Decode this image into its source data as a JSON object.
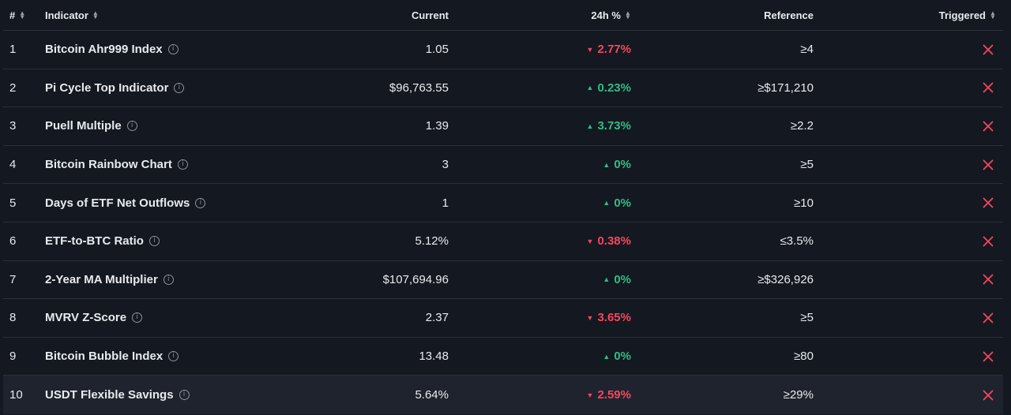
{
  "header": {
    "num": "#",
    "indicator": "Indicator",
    "current": "Current",
    "change": "24h %",
    "reference": "Reference",
    "triggered": "Triggered"
  },
  "colors": {
    "up": "#2ebd85",
    "down": "#f6465d",
    "background": "#141821"
  },
  "rows": [
    {
      "num": "1",
      "name": "Bitcoin Ahr999 Index",
      "current": "1.05",
      "direction": "down",
      "change": "2.77%",
      "reference": "≥4",
      "triggered_icon": "x-icon"
    },
    {
      "num": "2",
      "name": "Pi Cycle Top Indicator",
      "current": "$96,763.55",
      "direction": "up",
      "change": "0.23%",
      "reference": "≥$171,210",
      "triggered_icon": "x-icon"
    },
    {
      "num": "3",
      "name": "Puell Multiple",
      "current": "1.39",
      "direction": "up",
      "change": "3.73%",
      "reference": "≥2.2",
      "triggered_icon": "x-icon"
    },
    {
      "num": "4",
      "name": "Bitcoin Rainbow Chart",
      "current": "3",
      "direction": "up",
      "change": "0%",
      "reference": "≥5",
      "triggered_icon": "x-icon"
    },
    {
      "num": "5",
      "name": "Days of ETF Net Outflows",
      "current": "1",
      "direction": "up",
      "change": "0%",
      "reference": "≥10",
      "triggered_icon": "x-icon"
    },
    {
      "num": "6",
      "name": "ETF-to-BTC Ratio",
      "current": "5.12%",
      "direction": "down",
      "change": "0.38%",
      "reference": "≤3.5%",
      "triggered_icon": "x-icon"
    },
    {
      "num": "7",
      "name": "2-Year MA Multiplier",
      "current": "$107,694.96",
      "direction": "up",
      "change": "0%",
      "reference": "≥$326,926",
      "triggered_icon": "x-icon"
    },
    {
      "num": "8",
      "name": "MVRV Z-Score",
      "current": "2.37",
      "direction": "down",
      "change": "3.65%",
      "reference": "≥5",
      "triggered_icon": "x-icon"
    },
    {
      "num": "9",
      "name": "Bitcoin Bubble Index",
      "current": "13.48",
      "direction": "up",
      "change": "0%",
      "reference": "≥80",
      "triggered_icon": "x-icon"
    },
    {
      "num": "10",
      "name": "USDT Flexible Savings",
      "current": "5.64%",
      "direction": "down",
      "change": "2.59%",
      "reference": "≥29%",
      "triggered_icon": "x-icon"
    }
  ]
}
